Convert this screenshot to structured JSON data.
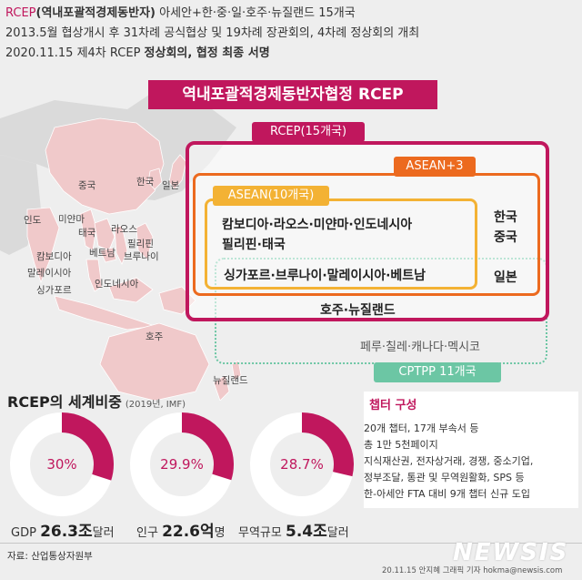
{
  "header": {
    "line1_highlight": "RCEP",
    "line1_bold": "(역내포괄적경제동반자)",
    "line1_rest": " 아세안+한·중·일·호주·뉴질랜드 15개국",
    "line2": "2013.5월 협상개시 후 31차례 공식협상 및 19차례 장관회의, 4차례 정상회의 개최",
    "line3_plain": "2020.11.15 제4차 RCEP ",
    "line3_bold": "정상회의, 협정 최종 서명"
  },
  "title": "역내포괄적경제동반자협정 RCEP",
  "map_labels": {
    "china": "중국",
    "korea": "한국",
    "japan": "일본",
    "india": "인도",
    "myanmar": "미얀마",
    "laos": "라오스",
    "thailand": "태국",
    "philippines": "필리핀",
    "cambodia": "캄보디아",
    "vietnam": "베트남",
    "brunei": "브루나이",
    "malaysia": "말레이시아",
    "singapore": "싱가포르",
    "indonesia": "인도네시아",
    "australia": "호주",
    "newzealand": "뉴질랜드"
  },
  "groups": {
    "rcep_tag": "RCEP(15개국)",
    "asean3_tag": "ASEAN+3",
    "asean_tag": "ASEAN(10개국)",
    "asean_line1": "캄보디아·라오스·미얀마·인도네시아",
    "asean_line2": "필리핀·태국",
    "asean_line3": "싱가포르·브루나이·말레이시아·베트남",
    "plus3_korea": "한국",
    "plus3_china": "중국",
    "plus3_japan": "일본",
    "rcep_extra": "호주·뉴질랜드",
    "cptpp_members": "페루·칠레·캐나다·멕시코",
    "cptpp_tag": "CPTPP 11개국"
  },
  "share": {
    "title": "RCEP의 세계비중",
    "subtitle": "(2019년, IMF)",
    "items": [
      {
        "pct_label": "30%",
        "value": 30,
        "label": "GDP ",
        "amount": "26.3조",
        "unit": "달러"
      },
      {
        "pct_label": "29.9%",
        "value": 29.9,
        "label": "인구 ",
        "amount": "22.6억",
        "unit": "명"
      },
      {
        "pct_label": "28.7%",
        "value": 28.7,
        "label": "무역규모 ",
        "amount": "5.4조",
        "unit": "달러"
      }
    ]
  },
  "chapter": {
    "title": "챕터 구성",
    "lines": [
      "20개 챕터, 17개 부속서 등",
      "총 1만 5천페이지",
      "지식재산권, 전자상거래, 경쟁, 중소기업,",
      "정부조달, 통관 및 무역원활화, SPS 등",
      "한-아세안 FTA 대비 9개 챕터 신규 도입"
    ]
  },
  "source": "자료: 산업통상자원부",
  "credit": "20.11.15 안지혜 그래픽 기자 hokma@newsis.com",
  "logo": "NEWSIS",
  "colors": {
    "rcep": "#c0175d",
    "asean3": "#ec6a1f",
    "asean": "#f3b234",
    "cptpp": "#6cc6a4",
    "donut_bg": "#ffffff",
    "map_land": "#f0c9ca"
  }
}
